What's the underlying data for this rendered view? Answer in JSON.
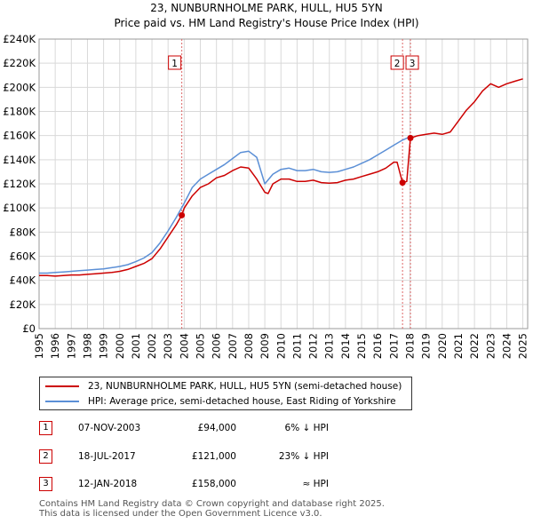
{
  "chart_data": {
    "type": "line",
    "title": "23, NUNBURNHOLME PARK, HULL, HU5 5YN",
    "subtitle": "Price paid vs. HM Land Registry's House Price Index (HPI)",
    "xlabel": "",
    "ylabel": "",
    "xlim": [
      1995,
      2025.3
    ],
    "ylim": [
      0,
      240000
    ],
    "grid": true,
    "y_ticks": [
      0,
      20000,
      40000,
      60000,
      80000,
      100000,
      120000,
      140000,
      160000,
      180000,
      200000,
      220000,
      240000
    ],
    "y_tick_labels": [
      "£0",
      "£20K",
      "£40K",
      "£60K",
      "£80K",
      "£100K",
      "£120K",
      "£140K",
      "£160K",
      "£180K",
      "£200K",
      "£220K",
      "£240K"
    ],
    "x_tick_labels": [
      "1995",
      "1996",
      "1997",
      "1998",
      "1999",
      "2000",
      "2001",
      "2002",
      "2003",
      "2004",
      "2005",
      "2006",
      "2007",
      "2008",
      "2009",
      "2010",
      "2011",
      "2012",
      "2013",
      "2014",
      "2015",
      "2016",
      "2017",
      "2018",
      "2019",
      "2020",
      "2021",
      "2022",
      "2023",
      "2024",
      "2025"
    ],
    "series": [
      {
        "name": "23, NUNBURNHOLME PARK, HULL, HU5 5YN (semi-detached house)",
        "color": "#cc0000",
        "x": [
          1995.0,
          1995.5,
          1996.0,
          1996.5,
          1997.0,
          1997.5,
          1998.0,
          1998.5,
          1999.0,
          1999.5,
          2000.0,
          2000.5,
          2001.0,
          2001.5,
          2002.0,
          2002.5,
          2003.0,
          2003.5,
          2003.85,
          2004.0,
          2004.5,
          2005.0,
          2005.5,
          2006.0,
          2006.5,
          2007.0,
          2007.5,
          2008.0,
          2008.5,
          2009.0,
          2009.2,
          2009.5,
          2010.0,
          2010.5,
          2011.0,
          2011.5,
          2012.0,
          2012.5,
          2013.0,
          2013.5,
          2014.0,
          2014.5,
          2015.0,
          2015.5,
          2016.0,
          2016.5,
          2017.0,
          2017.2,
          2017.54,
          2017.8,
          2018.03,
          2018.5,
          2019.0,
          2019.5,
          2020.0,
          2020.5,
          2021.0,
          2021.5,
          2022.0,
          2022.5,
          2023.0,
          2023.5,
          2024.0,
          2024.5,
          2025.0
        ],
        "values": [
          44000,
          44000,
          43500,
          44000,
          44500,
          44500,
          45000,
          45500,
          46000,
          46500,
          47500,
          49000,
          51500,
          54000,
          58000,
          66000,
          76000,
          86000,
          94000,
          100000,
          110000,
          117000,
          120000,
          125000,
          127000,
          131000,
          134000,
          133000,
          124000,
          113000,
          112000,
          120000,
          124000,
          124000,
          122000,
          122000,
          123000,
          121000,
          120500,
          121000,
          123000,
          124000,
          126000,
          128000,
          130000,
          133000,
          138000,
          138000,
          121000,
          122000,
          158000,
          160000,
          161000,
          162000,
          161000,
          163000,
          172000,
          181000,
          188000,
          197000,
          203000,
          200000,
          203000,
          205000,
          207000
        ]
      },
      {
        "name": "HPI: Average price, semi-detached house, East Riding of Yorkshire",
        "color": "#5b8fd6",
        "x": [
          1995.0,
          1995.5,
          1996.0,
          1996.5,
          1997.0,
          1997.5,
          1998.0,
          1998.5,
          1999.0,
          1999.5,
          2000.0,
          2000.5,
          2001.0,
          2001.5,
          2002.0,
          2002.5,
          2003.0,
          2003.5,
          2004.0,
          2004.5,
          2005.0,
          2005.5,
          2006.0,
          2006.5,
          2007.0,
          2007.5,
          2008.0,
          2008.5,
          2009.0,
          2009.5,
          2010.0,
          2010.5,
          2011.0,
          2011.5,
          2012.0,
          2012.5,
          2013.0,
          2013.5,
          2014.0,
          2014.5,
          2015.0,
          2015.5,
          2016.0,
          2016.5,
          2017.0,
          2017.5,
          2018.0
        ],
        "values": [
          46000,
          46000,
          46500,
          47000,
          47500,
          48000,
          48500,
          49000,
          49500,
          50500,
          51500,
          53000,
          55500,
          58500,
          63000,
          71000,
          81000,
          92000,
          104000,
          117000,
          124000,
          128000,
          132000,
          136000,
          141000,
          146000,
          147000,
          142000,
          120000,
          128000,
          132000,
          133000,
          131000,
          131000,
          132000,
          130000,
          129500,
          130000,
          132000,
          134000,
          137000,
          140000,
          144000,
          148000,
          152000,
          156000,
          159000
        ]
      }
    ],
    "sales": [
      {
        "marker": "1",
        "date": "07-NOV-2003",
        "x": 2003.85,
        "price_value": 94000,
        "price": "£94,000",
        "hpi": "6% ↓ HPI"
      },
      {
        "marker": "2",
        "date": "18-JUL-2017",
        "x": 2017.54,
        "price_value": 121000,
        "price": "£121,000",
        "hpi": "23% ↓ HPI"
      },
      {
        "marker": "3",
        "date": "12-JAN-2018",
        "x": 2018.03,
        "price_value": 158000,
        "price": "£158,000",
        "hpi": "≈ HPI"
      }
    ]
  },
  "footer": {
    "line1": "Contains HM Land Registry data © Crown copyright and database right 2025.",
    "line2": "This data is licensed under the Open Government Licence v3.0."
  }
}
